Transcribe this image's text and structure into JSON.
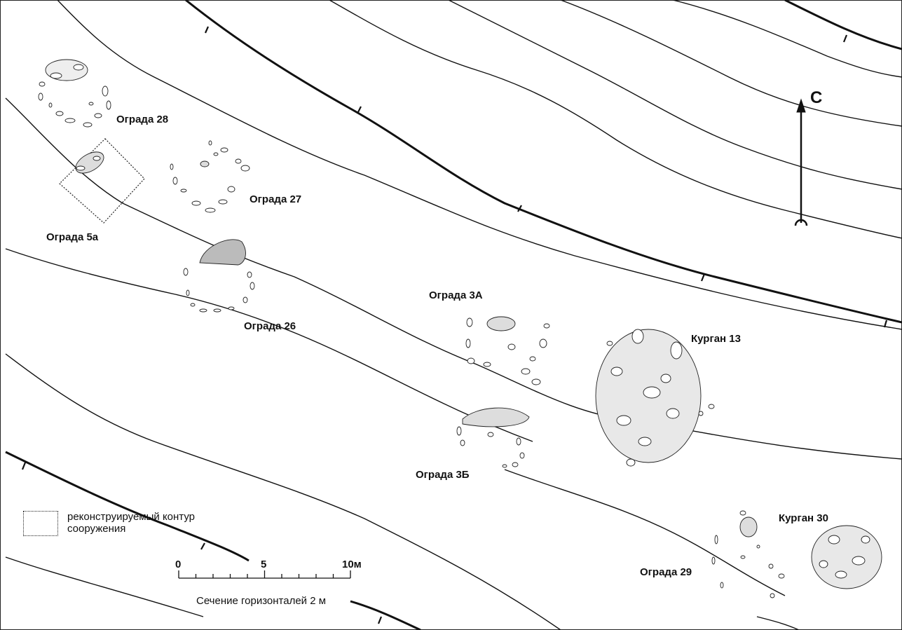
{
  "map": {
    "north_label": "С",
    "features": [
      {
        "id": "ograda-28",
        "label": "Ограда 28"
      },
      {
        "id": "ograda-27",
        "label": "Ограда 27"
      },
      {
        "id": "ograda-5a",
        "label": "Ограда 5а"
      },
      {
        "id": "ograda-26",
        "label": "Ограда 26"
      },
      {
        "id": "ograda-3a",
        "label": "Ограда 3А"
      },
      {
        "id": "kurgan-13",
        "label": "Курган 13"
      },
      {
        "id": "ograda-3b",
        "label": "Ограда 3Б"
      },
      {
        "id": "kurgan-30",
        "label": "Курган 30"
      },
      {
        "id": "ograda-29",
        "label": "Ограда 29"
      }
    ],
    "legend": {
      "line1": "реконструируемый контур",
      "line2": "сооружения"
    },
    "scale": {
      "ticks": [
        "0",
        "5",
        "10м"
      ],
      "contour_interval": "Сечение горизонталей 2 м"
    }
  }
}
